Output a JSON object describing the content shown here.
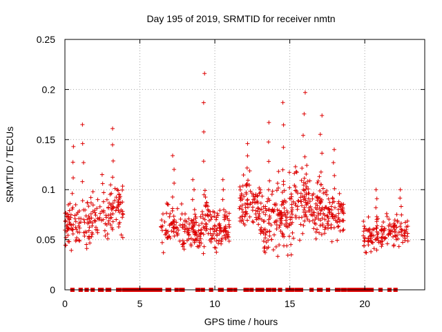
{
  "chart_data": {
    "type": "scatter",
    "title": "Day 195 of 2019, SRMTID for receiver nmtn",
    "xlabel": "GPS time / hours",
    "ylabel": "SRMTID / TECUs",
    "xlim": [
      0,
      24
    ],
    "ylim": [
      0,
      0.25
    ],
    "xticks": [
      0,
      5,
      10,
      15,
      20
    ],
    "yticks": [
      0,
      0.05,
      0.1,
      0.15,
      0.2,
      0.25
    ],
    "xtick_labels": [
      "0",
      "5",
      "10",
      "15",
      "20"
    ],
    "ytick_labels": [
      "0",
      "0.05",
      "0.1",
      "0.15",
      "0.2",
      "0.25"
    ],
    "grid": true,
    "marker": "+",
    "color": "#dd0000",
    "clusters": [
      {
        "t0": 0.0,
        "t1": 0.9,
        "base": 0.065,
        "spread": 0.02,
        "n": 55,
        "peak": 0.143
      },
      {
        "t0": 0.9,
        "t1": 1.9,
        "base": 0.07,
        "spread": 0.025,
        "n": 50,
        "peak": 0.165
      },
      {
        "t0": 1.9,
        "t1": 2.8,
        "base": 0.07,
        "spread": 0.02,
        "n": 25,
        "peak": 0.115
      },
      {
        "t0": 2.8,
        "t1": 3.9,
        "base": 0.08,
        "spread": 0.022,
        "n": 60,
        "peak": 0.161
      },
      {
        "t0": 6.4,
        "t1": 7.8,
        "base": 0.065,
        "spread": 0.02,
        "n": 55,
        "peak": 0.134
      },
      {
        "t0": 7.8,
        "t1": 9.1,
        "base": 0.06,
        "spread": 0.018,
        "n": 80,
        "peak": 0.11
      },
      {
        "t0": 9.1,
        "t1": 9.6,
        "base": 0.07,
        "spread": 0.025,
        "n": 30,
        "peak": 0.216
      },
      {
        "t0": 9.6,
        "t1": 11.0,
        "base": 0.06,
        "spread": 0.018,
        "n": 80,
        "peak": 0.11
      },
      {
        "t0": 11.6,
        "t1": 13.0,
        "base": 0.085,
        "spread": 0.025,
        "n": 80,
        "peak": 0.146
      },
      {
        "t0": 13.0,
        "t1": 14.2,
        "base": 0.07,
        "spread": 0.028,
        "n": 75,
        "peak": 0.167
      },
      {
        "t0": 14.2,
        "t1": 15.3,
        "base": 0.075,
        "spread": 0.03,
        "n": 75,
        "peak": 0.187
      },
      {
        "t0": 15.3,
        "t1": 16.4,
        "base": 0.09,
        "spread": 0.03,
        "n": 70,
        "peak": 0.197
      },
      {
        "t0": 16.4,
        "t1": 17.5,
        "base": 0.08,
        "spread": 0.028,
        "n": 70,
        "peak": 0.174
      },
      {
        "t0": 17.5,
        "t1": 18.6,
        "base": 0.075,
        "spread": 0.02,
        "n": 65,
        "peak": 0.14
      },
      {
        "t0": 19.9,
        "t1": 21.2,
        "base": 0.055,
        "spread": 0.015,
        "n": 70,
        "peak": 0.1
      },
      {
        "t0": 21.2,
        "t1": 22.9,
        "base": 0.058,
        "spread": 0.014,
        "n": 70,
        "peak": 0.1
      }
    ],
    "zero_segments": [
      [
        0.45,
        0.55
      ],
      [
        1.0,
        1.1
      ],
      [
        1.4,
        1.5
      ],
      [
        1.8,
        1.9
      ],
      [
        2.3,
        2.5
      ],
      [
        2.8,
        3.0
      ],
      [
        3.5,
        3.7
      ],
      [
        3.9,
        4.0
      ],
      [
        4.0,
        6.4
      ],
      [
        6.8,
        7.0
      ],
      [
        7.4,
        7.5
      ],
      [
        7.7,
        7.9
      ],
      [
        8.8,
        8.95
      ],
      [
        9.15,
        9.25
      ],
      [
        9.7,
        9.8
      ],
      [
        10.3,
        10.5
      ],
      [
        10.9,
        11.0
      ],
      [
        11.0,
        11.1
      ],
      [
        11.3,
        11.4
      ],
      [
        12.0,
        12.2
      ],
      [
        12.4,
        12.5
      ],
      [
        12.8,
        13.2
      ],
      [
        13.5,
        13.7
      ],
      [
        13.9,
        14.0
      ],
      [
        14.3,
        14.4
      ],
      [
        14.8,
        15.2
      ],
      [
        15.4,
        15.8
      ],
      [
        16.4,
        16.5
      ],
      [
        16.9,
        17.1
      ],
      [
        17.5,
        17.6
      ],
      [
        18.1,
        18.3
      ],
      [
        18.5,
        18.7
      ],
      [
        18.9,
        20.5
      ],
      [
        20.4,
        20.5
      ],
      [
        21.0,
        21.1
      ],
      [
        21.6,
        21.7
      ],
      [
        22.0,
        22.1
      ]
    ]
  }
}
